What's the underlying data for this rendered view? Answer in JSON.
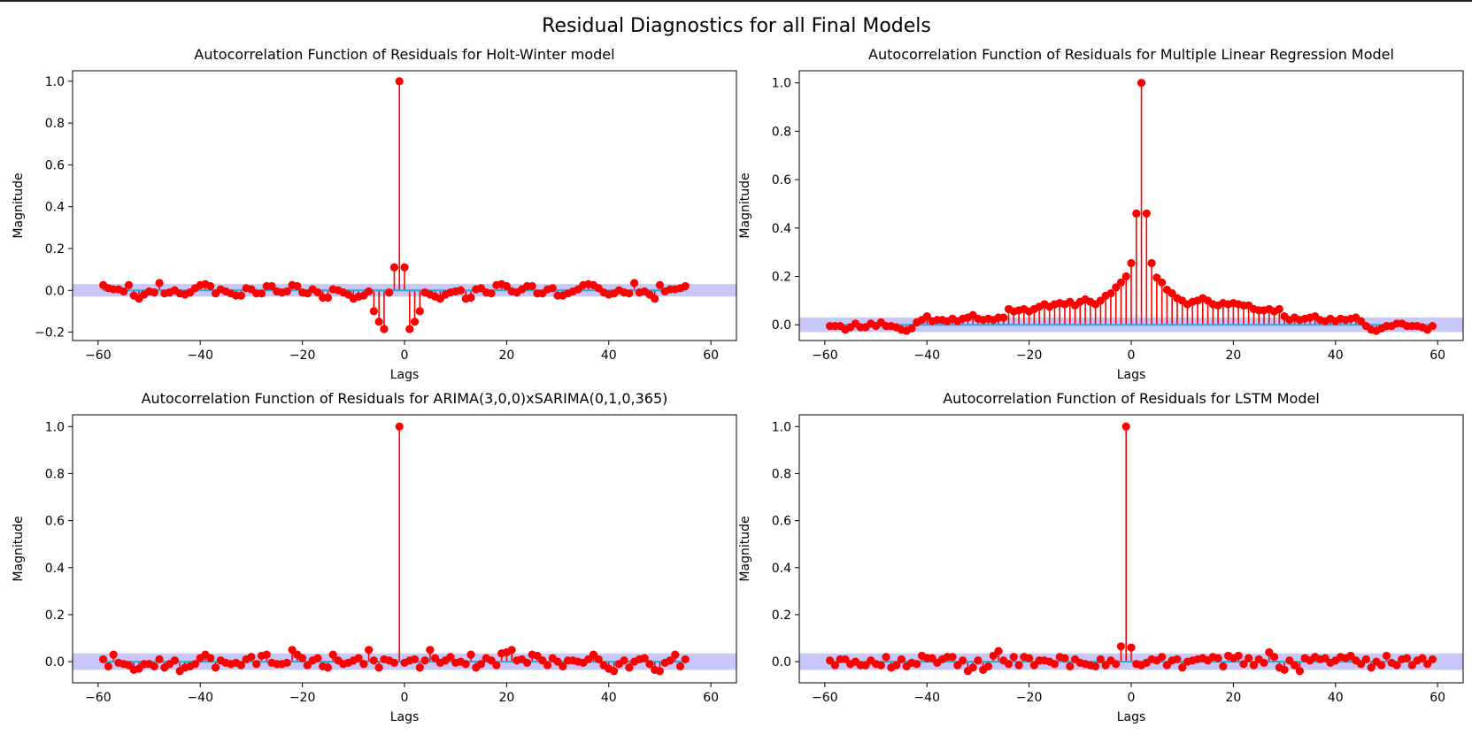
{
  "figure": {
    "suptitle": "Residual Diagnostics for all Final Models"
  },
  "style": {
    "stem_color": "#ff0000",
    "marker_color": "#ff0000",
    "baseline_color": "#29abe2",
    "band_color": "#bdbdf7",
    "axes_color": "#000000"
  },
  "chart_data": [
    {
      "type": "stem",
      "title": "Autocorrelation Function of Residuals for Holt-Winter model",
      "xlabel": "Lags",
      "ylabel": "Magnitude",
      "xlim": [
        -65,
        65
      ],
      "ylim": [
        -0.24,
        1.05
      ],
      "xticks": [
        -60,
        -40,
        -20,
        0,
        20,
        40,
        60
      ],
      "xtick_labels": [
        "−60",
        "−40",
        "−20",
        "0",
        "20",
        "40",
        "60"
      ],
      "yticks": [
        -0.2,
        0.0,
        0.2,
        0.4,
        0.6,
        0.8,
        1.0
      ],
      "ytick_labels": [
        "−0.2",
        "0.0",
        "0.2",
        "0.4",
        "0.6",
        "0.8",
        "1.0"
      ],
      "confidence_band": 0.03,
      "lags_start": -59,
      "values": [
        0.025,
        0.01,
        0.005,
        0.005,
        -0.005,
        0.025,
        -0.025,
        -0.04,
        -0.02,
        -0.005,
        -0.01,
        0.035,
        -0.015,
        -0.01,
        0.0,
        -0.015,
        -0.02,
        -0.01,
        0.01,
        0.025,
        0.03,
        0.02,
        -0.015,
        0.005,
        -0.005,
        -0.015,
        -0.025,
        -0.025,
        0.01,
        0.005,
        -0.015,
        -0.015,
        0.02,
        0.02,
        -0.005,
        -0.01,
        -0.005,
        0.025,
        0.02,
        -0.01,
        -0.015,
        0.005,
        -0.01,
        -0.035,
        -0.035,
        0.005,
        0.0,
        -0.01,
        -0.02,
        -0.04,
        -0.03,
        -0.025,
        -0.005,
        -0.1,
        -0.15,
        -0.185,
        -0.01,
        0.11,
        1.0,
        0.11,
        -0.185,
        -0.15,
        -0.1,
        -0.01,
        -0.02,
        -0.03,
        -0.04,
        -0.02,
        -0.01,
        -0.005,
        0.0,
        -0.04,
        -0.035,
        0.005,
        0.01,
        -0.01,
        -0.015,
        0.025,
        0.03,
        0.02,
        -0.005,
        -0.01,
        0.005,
        0.02,
        0.02,
        -0.015,
        -0.015,
        0.005,
        0.01,
        -0.025,
        -0.025,
        -0.015,
        -0.005,
        0.005,
        0.025,
        0.03,
        0.025,
        0.01,
        -0.01,
        -0.02,
        -0.015,
        0.0,
        -0.01,
        -0.015,
        0.035,
        -0.01,
        -0.005,
        -0.02,
        -0.04,
        0.025,
        -0.005,
        0.005,
        0.005,
        0.01,
        0.02
      ]
    },
    {
      "type": "stem",
      "title": "Autocorrelation Function of Residuals for Multiple Linear Regression Model",
      "xlabel": "Lags",
      "ylabel": "Magnitude",
      "xlim": [
        -65,
        65
      ],
      "ylim": [
        -0.065,
        1.05
      ],
      "xticks": [
        -60,
        -40,
        -20,
        0,
        20,
        40,
        60
      ],
      "xtick_labels": [
        "−60",
        "−40",
        "−20",
        "0",
        "20",
        "40",
        "60"
      ],
      "yticks": [
        0.0,
        0.2,
        0.4,
        0.6,
        0.8,
        1.0
      ],
      "ytick_labels": [
        "0.0",
        "0.2",
        "0.4",
        "0.6",
        "0.8",
        "1.0"
      ],
      "confidence_band": 0.03,
      "lags_start": -59,
      "values": [
        -0.005,
        -0.005,
        -0.005,
        -0.02,
        -0.01,
        0.005,
        -0.01,
        -0.01,
        0.005,
        -0.005,
        0.01,
        -0.005,
        -0.005,
        -0.01,
        -0.02,
        -0.025,
        -0.015,
        0.01,
        0.02,
        0.035,
        0.015,
        0.02,
        0.02,
        0.015,
        0.025,
        0.015,
        0.025,
        0.03,
        0.04,
        0.025,
        0.02,
        0.025,
        0.02,
        0.03,
        0.03,
        0.065,
        0.055,
        0.06,
        0.065,
        0.055,
        0.065,
        0.075,
        0.085,
        0.075,
        0.085,
        0.09,
        0.085,
        0.095,
        0.08,
        0.095,
        0.105,
        0.095,
        0.085,
        0.1,
        0.12,
        0.13,
        0.155,
        0.175,
        0.2,
        0.255,
        0.46,
        1.0,
        0.46,
        0.255,
        0.195,
        0.175,
        0.145,
        0.13,
        0.11,
        0.1,
        0.085,
        0.095,
        0.1,
        0.11,
        0.1,
        0.085,
        0.08,
        0.09,
        0.085,
        0.09,
        0.085,
        0.08,
        0.08,
        0.065,
        0.06,
        0.06,
        0.065,
        0.055,
        0.065,
        0.035,
        0.02,
        0.03,
        0.02,
        0.025,
        0.03,
        0.035,
        0.02,
        0.015,
        0.025,
        0.015,
        0.025,
        0.02,
        0.025,
        0.03,
        0.015,
        -0.005,
        -0.02,
        -0.025,
        -0.015,
        -0.005,
        -0.005,
        0.005,
        0.005,
        -0.005,
        -0.005,
        -0.005,
        -0.01,
        -0.02,
        -0.005
      ]
    },
    {
      "type": "stem",
      "title": "Autocorrelation Function of Residuals for ARIMA(3,0,0)xSARIMA(0,1,0,365)",
      "xlabel": "Lags",
      "ylabel": "Magnitude",
      "xlim": [
        -65,
        65
      ],
      "ylim": [
        -0.09,
        1.05
      ],
      "xticks": [
        -60,
        -40,
        -20,
        0,
        20,
        40,
        60
      ],
      "xtick_labels": [
        "−60",
        "−40",
        "−20",
        "0",
        "20",
        "40",
        "60"
      ],
      "yticks": [
        0.0,
        0.2,
        0.4,
        0.6,
        0.8,
        1.0
      ],
      "ytick_labels": [
        "0.0",
        "0.2",
        "0.4",
        "0.6",
        "0.8",
        "1.0"
      ],
      "confidence_band": 0.035,
      "lags_start": -59,
      "values": [
        0.01,
        -0.02,
        0.03,
        -0.005,
        -0.01,
        -0.015,
        -0.035,
        -0.03,
        -0.01,
        -0.01,
        -0.02,
        0.01,
        -0.025,
        -0.01,
        0.005,
        -0.04,
        -0.025,
        -0.02,
        -0.01,
        0.015,
        0.03,
        0.015,
        -0.025,
        0.005,
        -0.005,
        -0.01,
        -0.005,
        -0.015,
        0.01,
        0.02,
        -0.01,
        0.025,
        0.03,
        -0.005,
        -0.01,
        -0.01,
        -0.005,
        0.05,
        0.03,
        0.015,
        -0.015,
        0.005,
        0.015,
        -0.02,
        -0.025,
        0.03,
        0.005,
        -0.01,
        -0.005,
        0.005,
        0.015,
        -0.01,
        0.05,
        0.005,
        -0.025,
        0.01,
        0.005,
        -0.005,
        1.0,
        -0.005,
        0.005,
        0.01,
        -0.025,
        0.005,
        0.05,
        0.015,
        -0.005,
        0.005,
        0.02,
        -0.005,
        0.0,
        -0.01,
        0.03,
        -0.025,
        -0.01,
        0.015,
        0.005,
        -0.015,
        0.035,
        0.04,
        0.05,
        0.005,
        0.01,
        -0.005,
        0.03,
        0.025,
        0.005,
        -0.015,
        0.015,
        0.0,
        -0.02,
        0.005,
        0.005,
        0.0,
        -0.005,
        0.01,
        0.03,
        0.01,
        -0.015,
        -0.03,
        -0.04,
        -0.01,
        0.005,
        -0.025,
        0.0,
        0.01,
        0.015,
        -0.01,
        -0.035,
        -0.04,
        -0.005,
        0.005,
        0.03,
        -0.02,
        0.01
      ]
    },
    {
      "type": "stem",
      "title": "Autocorrelation Function of Residuals for LSTM Model",
      "xlabel": "Lags",
      "ylabel": "Magnitude",
      "xlim": [
        -65,
        65
      ],
      "ylim": [
        -0.09,
        1.05
      ],
      "xticks": [
        -60,
        -40,
        -20,
        0,
        20,
        40,
        60
      ],
      "xtick_labels": [
        "−60",
        "−40",
        "−20",
        "0",
        "20",
        "40",
        "60"
      ],
      "yticks": [
        0.0,
        0.2,
        0.4,
        0.6,
        0.8,
        1.0
      ],
      "ytick_labels": [
        "0.0",
        "0.2",
        "0.4",
        "0.6",
        "0.8",
        "1.0"
      ],
      "confidence_band": 0.035,
      "lags_start": -59,
      "values": [
        0.005,
        -0.015,
        0.01,
        0.01,
        -0.01,
        0.0,
        -0.015,
        -0.015,
        0.005,
        -0.01,
        -0.015,
        0.02,
        -0.025,
        -0.015,
        0.01,
        -0.02,
        -0.005,
        -0.01,
        0.025,
        0.015,
        0.015,
        -0.005,
        0.01,
        0.02,
        0.02,
        -0.015,
        0.005,
        -0.04,
        -0.025,
        0.005,
        -0.035,
        -0.02,
        0.025,
        0.045,
        0.005,
        -0.01,
        0.02,
        -0.015,
        0.02,
        0.015,
        -0.015,
        0.005,
        0.005,
        0.0,
        -0.01,
        0.02,
        0.015,
        -0.02,
        0.01,
        -0.005,
        -0.01,
        -0.015,
        -0.02,
        0.01,
        -0.015,
        0.005,
        -0.01,
        0.065,
        1.0,
        0.06,
        -0.01,
        -0.015,
        -0.005,
        0.01,
        0.005,
        0.02,
        -0.015,
        0.005,
        0.01,
        -0.025,
        0.0,
        0.005,
        0.01,
        0.015,
        0.005,
        0.02,
        0.015,
        -0.02,
        0.025,
        0.015,
        0.025,
        -0.01,
        0.015,
        -0.015,
        0.01,
        -0.005,
        0.04,
        0.02,
        -0.025,
        -0.035,
        0.005,
        -0.015,
        -0.04,
        0.015,
        0.005,
        0.02,
        0.01,
        0.015,
        -0.005,
        0.005,
        0.02,
        0.015,
        0.025,
        0.005,
        -0.01,
        0.01,
        -0.025,
        0.0,
        -0.015,
        0.025,
        -0.005,
        -0.015,
        0.01,
        0.015,
        -0.015,
        0.005,
        0.015,
        -0.01,
        0.01
      ]
    }
  ]
}
